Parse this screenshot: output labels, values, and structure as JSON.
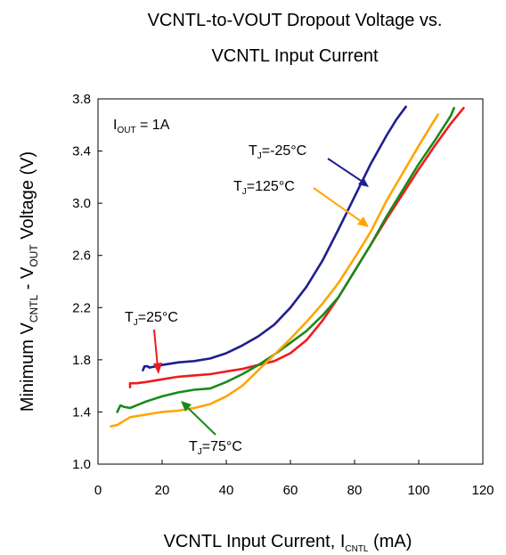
{
  "chart_data": {
    "type": "line",
    "title_lines": [
      "VCNTL-to-VOUT Dropout Voltage vs.",
      "VCNTL Input Current"
    ],
    "xlabel": {
      "main": "VCNTL Input Current, I",
      "sub": "CNTL",
      "tail": " (mA)"
    },
    "ylabel": {
      "p1": "Minimum V",
      "s1": "CNTL",
      "p2": " - V",
      "s2": "OUT",
      "p3": " Voltage (V)"
    },
    "xlim": [
      0,
      120
    ],
    "ylim": [
      1.0,
      3.8
    ],
    "xticks": [
      "0",
      "20",
      "40",
      "60",
      "80",
      "100",
      "120"
    ],
    "yticks": [
      "1.0",
      "1.4",
      "1.8",
      "2.2",
      "2.6",
      "3.0",
      "3.4",
      "3.8"
    ],
    "grid": false,
    "condition": {
      "p1": "I",
      "s1": "OUT",
      "p2": " = 1A"
    },
    "series": [
      {
        "name": "TJ=-25°C",
        "label": {
          "p1": "T",
          "s1": "J",
          "p2": "=-25°C"
        },
        "color": "#1f1f8f",
        "points": [
          [
            14,
            1.72
          ],
          [
            14.5,
            1.75
          ],
          [
            15.5,
            1.75
          ],
          [
            16,
            1.74
          ],
          [
            18,
            1.75
          ],
          [
            20,
            1.76
          ],
          [
            25,
            1.78
          ],
          [
            30,
            1.79
          ],
          [
            35,
            1.81
          ],
          [
            40,
            1.85
          ],
          [
            45,
            1.91
          ],
          [
            50,
            1.98
          ],
          [
            55,
            2.07
          ],
          [
            60,
            2.2
          ],
          [
            65,
            2.36
          ],
          [
            70,
            2.56
          ],
          [
            75,
            2.8
          ],
          [
            80,
            3.05
          ],
          [
            85,
            3.3
          ],
          [
            90,
            3.52
          ],
          [
            93,
            3.64
          ],
          [
            96,
            3.74
          ]
        ]
      },
      {
        "name": "TJ=25°C",
        "label": {
          "p1": "T",
          "s1": "J",
          "p2": "=25°C"
        },
        "color": "#ee1c1c",
        "points": [
          [
            10,
            1.59
          ],
          [
            10,
            1.62
          ],
          [
            12,
            1.62
          ],
          [
            15,
            1.63
          ],
          [
            20,
            1.65
          ],
          [
            25,
            1.67
          ],
          [
            30,
            1.68
          ],
          [
            35,
            1.69
          ],
          [
            40,
            1.71
          ],
          [
            45,
            1.73
          ],
          [
            50,
            1.76
          ],
          [
            55,
            1.79
          ],
          [
            60,
            1.85
          ],
          [
            65,
            1.95
          ],
          [
            70,
            2.1
          ],
          [
            75,
            2.28
          ],
          [
            80,
            2.48
          ],
          [
            85,
            2.68
          ],
          [
            90,
            2.88
          ],
          [
            95,
            3.07
          ],
          [
            100,
            3.26
          ],
          [
            105,
            3.44
          ],
          [
            110,
            3.61
          ],
          [
            114,
            3.73
          ]
        ]
      },
      {
        "name": "TJ=75°C",
        "label": {
          "p1": "T",
          "s1": "J",
          "p2": "=75°C"
        },
        "color": "#1a8a1a",
        "points": [
          [
            6,
            1.4
          ],
          [
            7,
            1.45
          ],
          [
            8,
            1.44
          ],
          [
            10,
            1.43
          ],
          [
            12,
            1.45
          ],
          [
            15,
            1.48
          ],
          [
            20,
            1.52
          ],
          [
            25,
            1.55
          ],
          [
            30,
            1.57
          ],
          [
            35,
            1.58
          ],
          [
            40,
            1.63
          ],
          [
            45,
            1.69
          ],
          [
            50,
            1.76
          ],
          [
            55,
            1.84
          ],
          [
            60,
            1.93
          ],
          [
            65,
            2.02
          ],
          [
            70,
            2.14
          ],
          [
            75,
            2.28
          ],
          [
            80,
            2.48
          ],
          [
            85,
            2.68
          ],
          [
            90,
            2.9
          ],
          [
            95,
            3.1
          ],
          [
            100,
            3.3
          ],
          [
            105,
            3.48
          ],
          [
            110,
            3.67
          ],
          [
            111,
            3.73
          ]
        ]
      },
      {
        "name": "TJ=125°C",
        "label": {
          "p1": "T",
          "s1": "J",
          "p2": "=125°C"
        },
        "color": "#ffa500",
        "points": [
          [
            4,
            1.29
          ],
          [
            6,
            1.3
          ],
          [
            8,
            1.33
          ],
          [
            10,
            1.36
          ],
          [
            15,
            1.38
          ],
          [
            20,
            1.4
          ],
          [
            25,
            1.41
          ],
          [
            30,
            1.43
          ],
          [
            35,
            1.46
          ],
          [
            40,
            1.52
          ],
          [
            45,
            1.6
          ],
          [
            50,
            1.72
          ],
          [
            55,
            1.84
          ],
          [
            60,
            1.96
          ],
          [
            65,
            2.09
          ],
          [
            70,
            2.23
          ],
          [
            75,
            2.39
          ],
          [
            80,
            2.58
          ],
          [
            85,
            2.78
          ],
          [
            90,
            3.02
          ],
          [
            95,
            3.23
          ],
          [
            100,
            3.44
          ],
          [
            103,
            3.56
          ],
          [
            106,
            3.68
          ]
        ]
      }
    ]
  }
}
